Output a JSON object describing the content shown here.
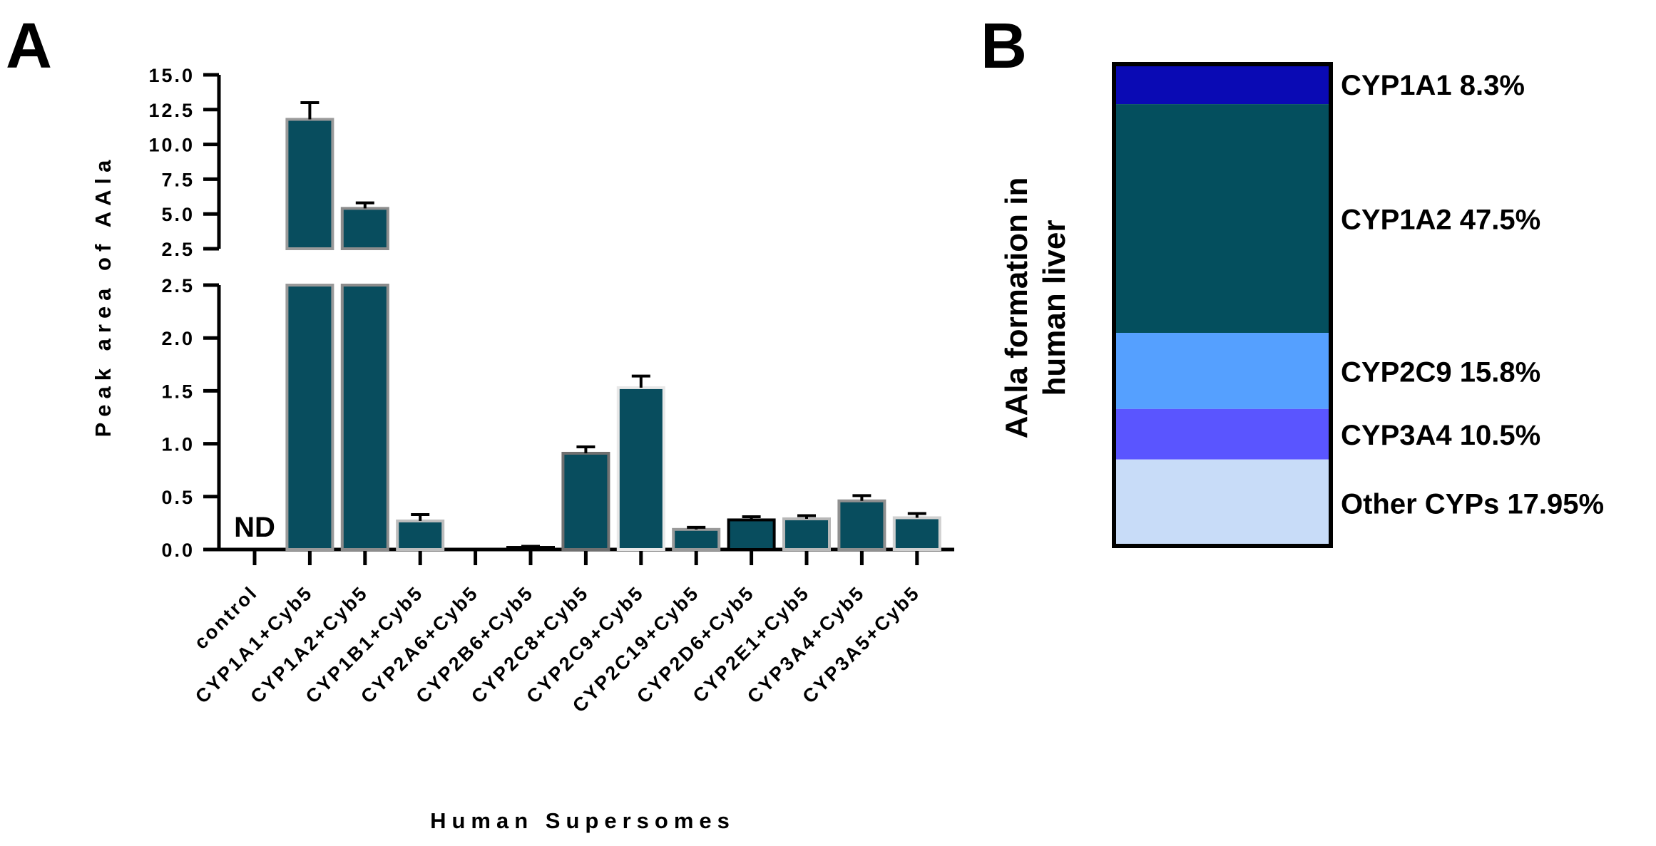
{
  "chart_data": [
    {
      "panel": "A",
      "type": "bar",
      "xlabel": "Human Supersomes",
      "ylabel": "Peak area of AAla",
      "categories": [
        "control",
        "CYP1A1+Cyb5",
        "CYP1A2+Cyb5",
        "CYP1B1+Cyb5",
        "CYP2A6+Cyb5",
        "CYP2B6+Cyb5",
        "CYP2C8+Cyb5",
        "CYP2C9+Cyb5",
        "CYP2C19+Cyb5",
        "CYP2D6+Cyb5",
        "CYP2E1+Cyb5",
        "CYP3A4+Cyb5",
        "CYP3A5+Cyb5"
      ],
      "values": [
        0,
        11.8,
        5.4,
        0.27,
        0,
        0.02,
        0.91,
        1.53,
        0.19,
        0.28,
        0.29,
        0.46,
        0.3
      ],
      "errors": [
        0,
        1.2,
        0.4,
        0.06,
        0,
        0.01,
        0.06,
        0.11,
        0.02,
        0.03,
        0.03,
        0.05,
        0.04
      ],
      "annotations": [
        {
          "category": "control",
          "text": "ND"
        }
      ],
      "axis_break": {
        "lower_range": [
          0,
          2.5
        ],
        "upper_range": [
          2.5,
          15.0
        ]
      },
      "lower_ticks": [
        "0.0",
        "0.5",
        "1.0",
        "1.5",
        "2.0",
        "2.5"
      ],
      "lower_tick_values": [
        0,
        0.5,
        1.0,
        1.5,
        2.0,
        2.5
      ],
      "upper_ticks": [
        "2.5",
        "5.0",
        "7.5",
        "10.0",
        "12.5",
        "15.0"
      ],
      "upper_tick_values": [
        2.5,
        5.0,
        7.5,
        10.0,
        12.5,
        15.0
      ],
      "bar_color": "#084d5e",
      "bar_edge_colors": [
        "#000000",
        "#9a9a9a",
        "#8c8c8c",
        "#bdbdbd",
        "#000000",
        "#000000",
        "#707070",
        "#e8e8e8",
        "#9a9a9a",
        "#000000",
        "#b8b8b8",
        "#909090",
        "#d0d0d0"
      ]
    },
    {
      "panel": "B",
      "type": "stacked-bar",
      "ylabel_lines": [
        "AAla formation in",
        "human liver"
      ],
      "segments": [
        {
          "label": "CYP1A1 8.3%",
          "value": 8.3,
          "color": "#0a0ab4"
        },
        {
          "label": "CYP1A2 47.5%",
          "value": 47.5,
          "color": "#044f5e"
        },
        {
          "label": "CYP2C9 15.8%",
          "value": 15.8,
          "color": "#55a0ff"
        },
        {
          "label": "CYP3A4 10.5%",
          "value": 10.5,
          "color": "#5a55ff"
        },
        {
          "label": "Other CYPs 17.95%",
          "value": 17.95,
          "color": "#c8dcf8"
        }
      ]
    }
  ]
}
